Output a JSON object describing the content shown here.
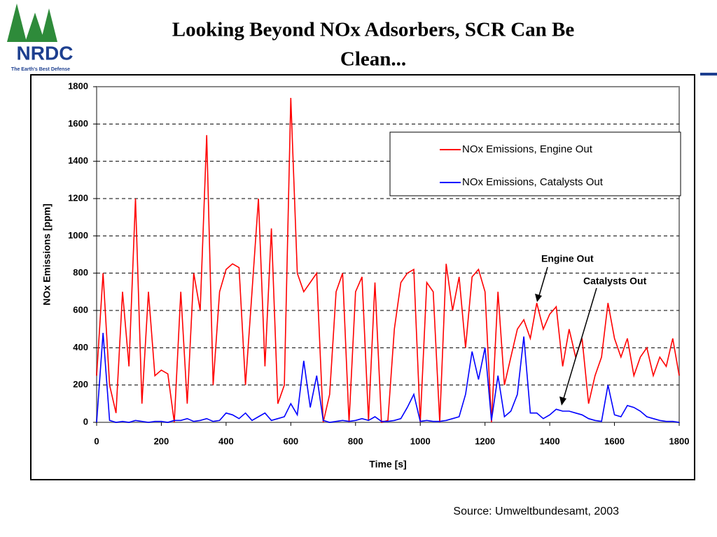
{
  "header": {
    "logo": "NRDC",
    "tagline": "The Earth's Best Defense",
    "title_lines": [
      "Looking Beyond NOx Adsorbers, SCR Can Be",
      "Clean..."
    ]
  },
  "chart_data": {
    "type": "line",
    "xlabel": "Time [s]",
    "ylabel": "NOx Emissions [ppm]",
    "x": [
      0,
      20,
      40,
      60,
      80,
      100,
      120,
      140,
      160,
      180,
      200,
      220,
      240,
      260,
      280,
      300,
      320,
      340,
      360,
      380,
      400,
      420,
      440,
      460,
      480,
      500,
      520,
      540,
      560,
      580,
      600,
      620,
      640,
      660,
      680,
      700,
      720,
      740,
      760,
      780,
      800,
      820,
      840,
      860,
      880,
      900,
      920,
      940,
      960,
      980,
      1000,
      1020,
      1040,
      1060,
      1080,
      1100,
      1120,
      1140,
      1160,
      1180,
      1200,
      1220,
      1240,
      1260,
      1280,
      1300,
      1320,
      1340,
      1360,
      1380,
      1400,
      1420,
      1440,
      1460,
      1480,
      1500,
      1520,
      1540,
      1560,
      1580,
      1600,
      1620,
      1640,
      1660,
      1680,
      1700,
      1720,
      1740,
      1760,
      1780,
      1800
    ],
    "series": [
      {
        "name": "NOx Emissions, Engine Out",
        "color": "#ff0000",
        "values": [
          250,
          800,
          200,
          50,
          700,
          300,
          1200,
          100,
          700,
          250,
          280,
          260,
          0,
          700,
          100,
          800,
          600,
          1540,
          200,
          700,
          820,
          850,
          830,
          200,
          700,
          1200,
          300,
          1040,
          100,
          200,
          1740,
          800,
          700,
          750,
          800,
          0,
          150,
          700,
          800,
          0,
          700,
          780,
          10,
          750,
          0,
          10,
          500,
          750,
          800,
          820,
          0,
          750,
          700,
          0,
          850,
          600,
          780,
          400,
          780,
          820,
          700,
          0,
          700,
          200,
          350,
          500,
          550,
          450,
          640,
          500,
          580,
          620,
          300,
          500,
          350,
          450,
          100,
          250,
          350,
          640,
          450,
          350,
          450,
          250,
          350,
          400,
          250,
          350,
          300,
          450,
          250
        ]
      },
      {
        "name": "NOx Emissions, Catalysts Out",
        "color": "#0000ff",
        "values": [
          0,
          480,
          10,
          0,
          5,
          0,
          10,
          5,
          0,
          5,
          5,
          0,
          10,
          10,
          20,
          5,
          10,
          20,
          5,
          10,
          50,
          40,
          20,
          50,
          10,
          30,
          50,
          10,
          20,
          30,
          100,
          40,
          330,
          80,
          250,
          10,
          0,
          5,
          10,
          5,
          10,
          20,
          10,
          30,
          5,
          5,
          10,
          20,
          80,
          150,
          5,
          10,
          5,
          5,
          10,
          20,
          30,
          150,
          380,
          230,
          400,
          10,
          250,
          30,
          60,
          150,
          460,
          50,
          50,
          20,
          40,
          70,
          60,
          60,
          50,
          40,
          20,
          10,
          5,
          200,
          40,
          30,
          90,
          80,
          60,
          30,
          20,
          10,
          5,
          5,
          0
        ]
      }
    ],
    "xlim": [
      0,
      1800
    ],
    "xticks": [
      0,
      200,
      400,
      600,
      800,
      1000,
      1200,
      1400,
      1600,
      1800
    ],
    "ylim": [
      0,
      1800
    ],
    "yticks": [
      0,
      200,
      400,
      600,
      800,
      1000,
      1200,
      1400,
      1600,
      1800
    ],
    "grid": true,
    "legend": "upper right",
    "annotations": [
      "Engine Out",
      "Catalysts Out"
    ]
  },
  "source": "Source: Umweltbundesamt, 2003"
}
